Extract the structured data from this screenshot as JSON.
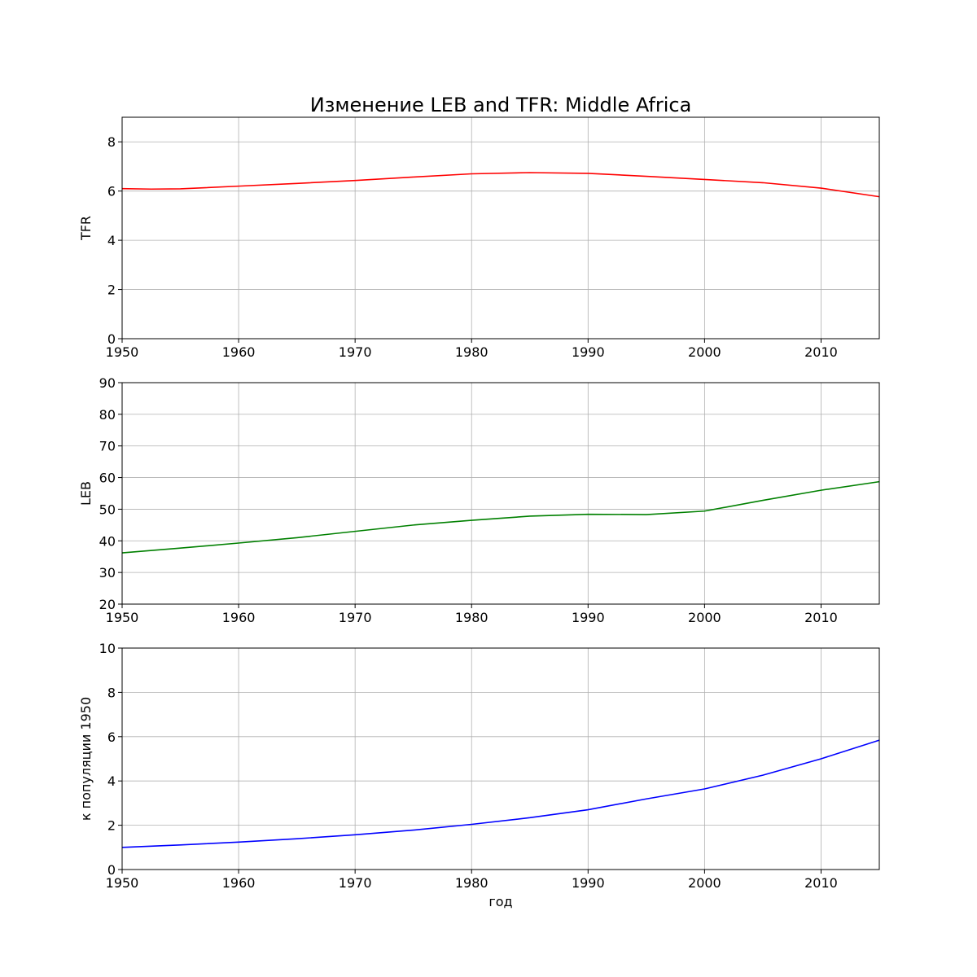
{
  "figure_title": "Изменение LEB and TFR: Middle Africa",
  "chart_data": [
    {
      "type": "line",
      "ylabel": "TFR",
      "xlabel": "",
      "xlim": [
        1950,
        2015
      ],
      "ylim": [
        0,
        9
      ],
      "x_ticks": [
        "1950",
        "1960",
        "1970",
        "1980",
        "1990",
        "2000",
        "2010"
      ],
      "y_ticks": [
        "0",
        "2",
        "4",
        "6",
        "8"
      ],
      "grid": true,
      "color": "#ff0000",
      "x": [
        1950,
        1952.5,
        1955,
        1960,
        1965,
        1970,
        1975,
        1980,
        1985,
        1990,
        1995,
        2000,
        2005,
        2010,
        2015
      ],
      "y": [
        6.1,
        6.08,
        6.09,
        6.2,
        6.31,
        6.43,
        6.57,
        6.7,
        6.75,
        6.72,
        6.6,
        6.47,
        6.34,
        6.12,
        5.77
      ]
    },
    {
      "type": "line",
      "ylabel": "LEB",
      "xlabel": "",
      "xlim": [
        1950,
        2015
      ],
      "ylim": [
        20,
        90
      ],
      "x_ticks": [
        "1950",
        "1960",
        "1970",
        "1980",
        "1990",
        "2000",
        "2010"
      ],
      "y_ticks": [
        "20",
        "30",
        "40",
        "50",
        "60",
        "70",
        "80",
        "90"
      ],
      "grid": true,
      "color": "#008000",
      "x": [
        1950,
        1955,
        1960,
        1965,
        1970,
        1975,
        1980,
        1985,
        1990,
        1995,
        2000,
        2005,
        2010,
        2015
      ],
      "y": [
        36.2,
        37.7,
        39.3,
        41.0,
        43.0,
        45.0,
        46.5,
        47.8,
        48.4,
        48.3,
        49.4,
        52.8,
        56.0,
        58.7
      ]
    },
    {
      "type": "line",
      "ylabel": "к популяции 1950",
      "xlabel": "год",
      "xlim": [
        1950,
        2015
      ],
      "ylim": [
        0,
        10
      ],
      "x_ticks": [
        "1950",
        "1960",
        "1970",
        "1980",
        "1990",
        "2000",
        "2010"
      ],
      "y_ticks": [
        "0",
        "2",
        "4",
        "6",
        "8",
        "10"
      ],
      "grid": true,
      "color": "#0000ff",
      "x": [
        1950,
        1955,
        1960,
        1965,
        1970,
        1975,
        1980,
        1985,
        1990,
        1995,
        2000,
        2005,
        2010,
        2015
      ],
      "y": [
        1.0,
        1.11,
        1.24,
        1.39,
        1.57,
        1.78,
        2.04,
        2.34,
        2.7,
        3.19,
        3.64,
        4.26,
        5.0,
        5.84
      ]
    }
  ]
}
